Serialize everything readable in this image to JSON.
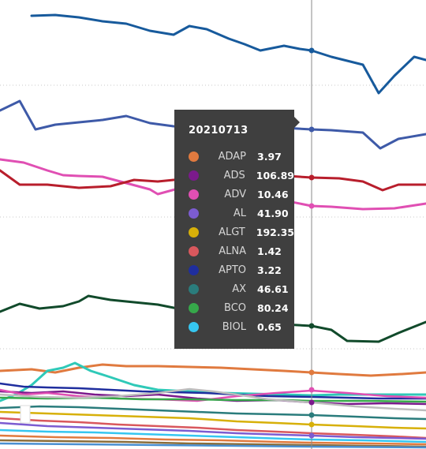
{
  "chart_data": {
    "type": "line",
    "hover_date": "20210713",
    "grid": true,
    "legend": "none",
    "series": [
      {
        "name": "ADAP",
        "color": "#e07a3f",
        "value": "3.97"
      },
      {
        "name": "ADS",
        "color": "#7b1a8c",
        "value": "106.89"
      },
      {
        "name": "ADV",
        "color": "#e04fb3",
        "value": "10.46"
      },
      {
        "name": "AL",
        "color": "#7c5cd1",
        "value": "41.90"
      },
      {
        "name": "ALGT",
        "color": "#d7b009",
        "value": "192.35"
      },
      {
        "name": "ALNA",
        "color": "#d9585d",
        "value": "1.42"
      },
      {
        "name": "APTO",
        "color": "#1f2e9e",
        "value": "3.22"
      },
      {
        "name": "AX",
        "color": "#2a7c7c",
        "value": "46.61"
      },
      {
        "name": "BCO",
        "color": "#36a84a",
        "value": "80.24"
      },
      {
        "name": "BIOL",
        "color": "#36c6f0",
        "value": "0.65"
      }
    ]
  }
}
